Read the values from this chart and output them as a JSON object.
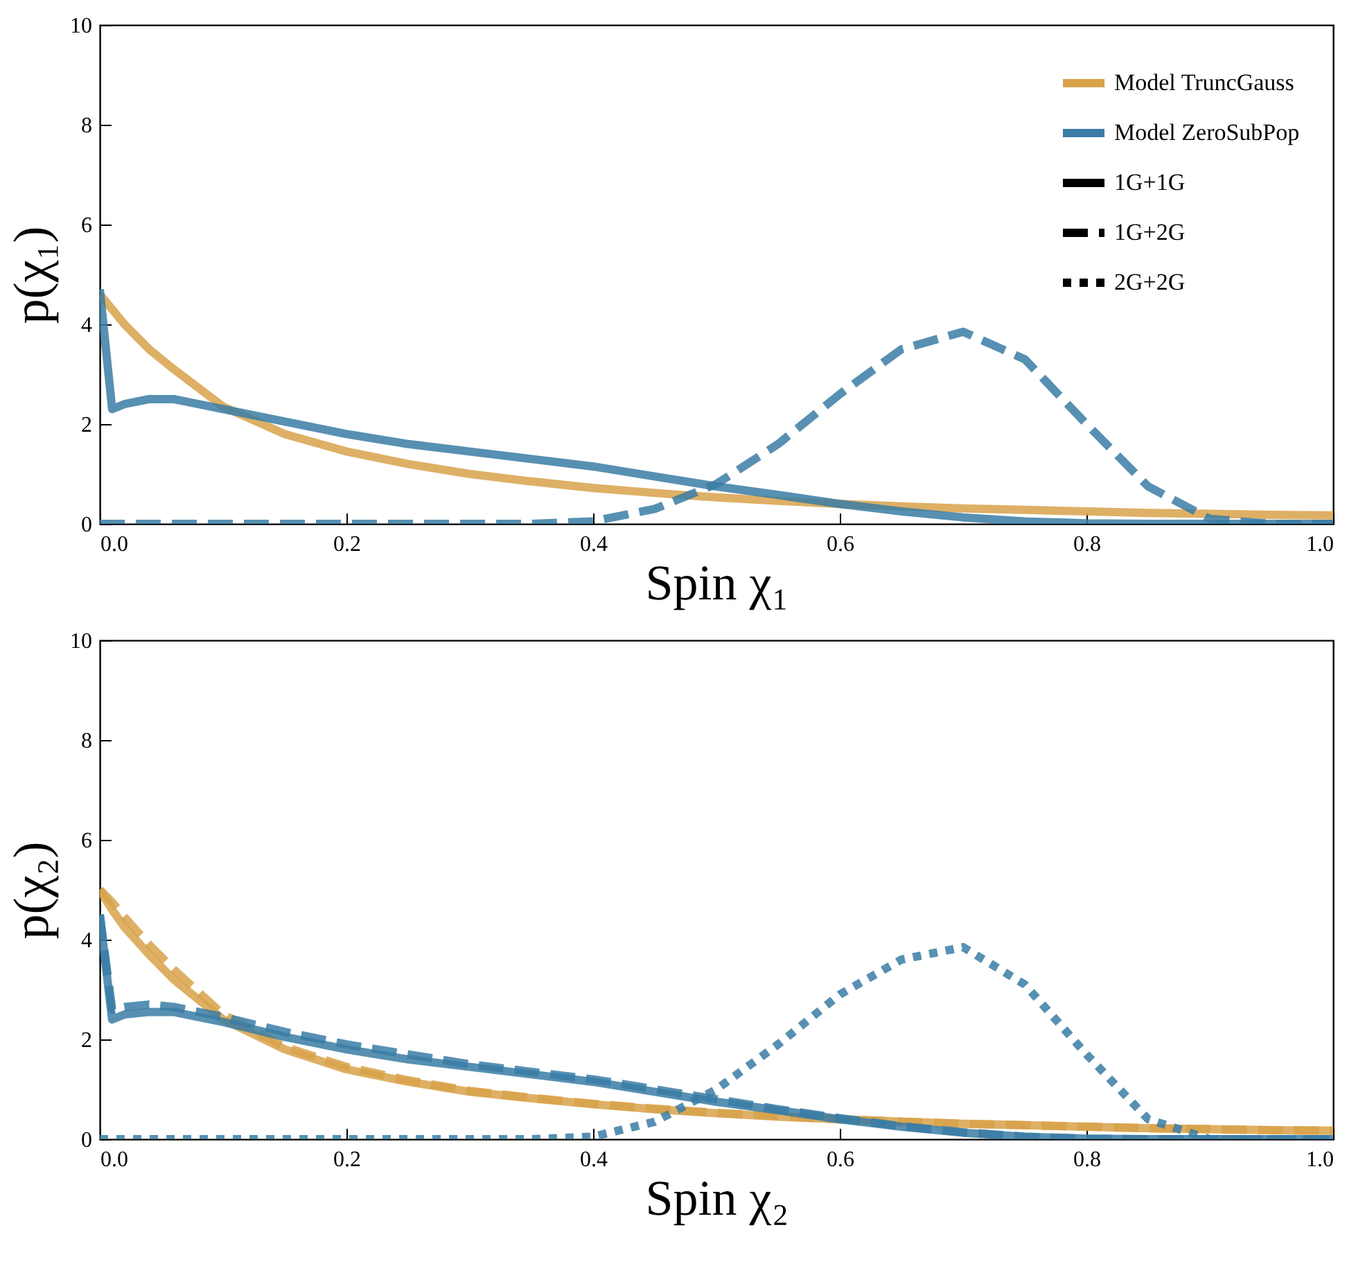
{
  "chart_data": [
    {
      "type": "line",
      "xlabel": "Spin χ₁",
      "ylabel": "p(χ₁)",
      "x": [
        0,
        0.01,
        0.02,
        0.04,
        0.06,
        0.1,
        0.15,
        0.2,
        0.25,
        0.3,
        0.35,
        0.4,
        0.45,
        0.5,
        0.55,
        0.6,
        0.65,
        0.7,
        0.75,
        0.8,
        0.85,
        0.9,
        0.95,
        1.0
      ],
      "xlim": [
        0,
        1
      ],
      "xticks": [
        {
          "value": 0,
          "label": "0.0"
        },
        {
          "value": 0.2,
          "label": "0.2"
        },
        {
          "value": 0.4,
          "label": "0.4"
        },
        {
          "value": 0.6,
          "label": "0.6"
        },
        {
          "value": 0.8,
          "label": "0.8"
        },
        {
          "value": 1,
          "label": "1.0"
        }
      ],
      "ylim": [
        0,
        10
      ],
      "yticks": [
        0,
        2,
        4,
        6,
        8,
        10
      ],
      "legend": "top right",
      "series": [
        {
          "name": "Model TruncGauss",
          "color": "#d8a24a",
          "line_style": "solid",
          "values": [
            4.6,
            4.3,
            4.0,
            3.5,
            3.1,
            2.35,
            1.8,
            1.45,
            1.2,
            1.0,
            0.85,
            0.72,
            0.62,
            0.53,
            0.46,
            0.4,
            0.35,
            0.31,
            0.28,
            0.25,
            0.22,
            0.2,
            0.18,
            0.17
          ]
        },
        {
          "name": "Model ZeroSubPop",
          "color": "#3a7ca5",
          "line_style": "solid",
          "values": [
            4.7,
            2.3,
            2.4,
            2.5,
            2.5,
            2.3,
            2.05,
            1.8,
            1.6,
            1.45,
            1.3,
            1.15,
            0.95,
            0.75,
            0.58,
            0.4,
            0.25,
            0.13,
            0.05,
            0.01,
            0,
            0,
            0,
            0
          ]
        },
        {
          "color": "#3a7ca5",
          "line_style": "dashed",
          "values": [
            0,
            0,
            0,
            0,
            0,
            0,
            0,
            0,
            0,
            0,
            0,
            0.05,
            0.3,
            0.8,
            1.6,
            2.6,
            3.5,
            3.85,
            3.3,
            2.0,
            0.75,
            0.1,
            0,
            0
          ]
        },
        {
          "name": "1G+1G",
          "color": "#000000",
          "line_style": "solid",
          "values": [
            null,
            null,
            null,
            null,
            null,
            null,
            null,
            null,
            null,
            null,
            null,
            null,
            null,
            null,
            null,
            null,
            null,
            null,
            null,
            null,
            null,
            null,
            null,
            null
          ]
        },
        {
          "name": "1G+2G",
          "color": "#000000",
          "line_style": "dashed",
          "values": [
            null,
            null,
            null,
            null,
            null,
            null,
            null,
            null,
            null,
            null,
            null,
            null,
            null,
            null,
            null,
            null,
            null,
            null,
            null,
            null,
            null,
            null,
            null,
            null
          ]
        },
        {
          "name": "2G+2G",
          "color": "#000000",
          "line_style": "dotted",
          "values": [
            null,
            null,
            null,
            null,
            null,
            null,
            null,
            null,
            null,
            null,
            null,
            null,
            null,
            null,
            null,
            null,
            null,
            null,
            null,
            null,
            null,
            null,
            null,
            null
          ]
        }
      ]
    },
    {
      "type": "line",
      "xlabel": "Spin χ₂",
      "ylabel": "p(χ₂)",
      "x": [
        0,
        0.01,
        0.02,
        0.04,
        0.06,
        0.1,
        0.15,
        0.2,
        0.25,
        0.3,
        0.35,
        0.4,
        0.45,
        0.5,
        0.55,
        0.6,
        0.65,
        0.7,
        0.75,
        0.8,
        0.85,
        0.9,
        0.95,
        1.0
      ],
      "xlim": [
        0,
        1
      ],
      "xticks": [
        {
          "value": 0,
          "label": "0.0"
        },
        {
          "value": 0.2,
          "label": "0.2"
        },
        {
          "value": 0.4,
          "label": "0.4"
        },
        {
          "value": 0.6,
          "label": "0.6"
        },
        {
          "value": 0.8,
          "label": "0.8"
        },
        {
          "value": 1,
          "label": "1.0"
        }
      ],
      "ylim": [
        0,
        10
      ],
      "yticks": [
        0,
        2,
        4,
        6,
        8,
        10
      ],
      "series": [
        {
          "color": "#d8a24a",
          "line_style": "solid",
          "values": [
            5.0,
            4.6,
            4.25,
            3.7,
            3.2,
            2.4,
            1.8,
            1.4,
            1.15,
            0.95,
            0.82,
            0.7,
            0.6,
            0.52,
            0.45,
            0.4,
            0.35,
            0.31,
            0.28,
            0.25,
            0.22,
            0.2,
            0.18,
            0.17
          ]
        },
        {
          "color": "#d8a24a",
          "line_style": "dashed",
          "values": [
            5.0,
            4.75,
            4.45,
            3.9,
            3.4,
            2.5,
            1.85,
            1.45,
            1.18,
            0.97,
            0.83,
            0.71,
            0.61,
            0.53,
            0.46,
            0.4,
            0.35,
            0.31,
            0.28,
            0.25,
            0.22,
            0.2,
            0.18,
            0.17
          ]
        },
        {
          "color": "#3a7ca5",
          "line_style": "solid",
          "values": [
            4.5,
            2.4,
            2.5,
            2.55,
            2.55,
            2.35,
            2.05,
            1.8,
            1.6,
            1.45,
            1.3,
            1.15,
            0.95,
            0.75,
            0.58,
            0.4,
            0.25,
            0.13,
            0.05,
            0.01,
            0,
            0,
            0,
            0
          ]
        },
        {
          "color": "#3a7ca5",
          "line_style": "dashed",
          "values": [
            4.5,
            2.6,
            2.65,
            2.7,
            2.65,
            2.45,
            2.15,
            1.9,
            1.7,
            1.5,
            1.35,
            1.2,
            1.0,
            0.8,
            0.6,
            0.42,
            0.26,
            0.14,
            0.05,
            0.01,
            0,
            0,
            0,
            0
          ]
        },
        {
          "color": "#3a7ca5",
          "line_style": "dotted",
          "values": [
            0,
            0,
            0,
            0,
            0,
            0,
            0,
            0,
            0,
            0,
            0,
            0.05,
            0.35,
            1.0,
            1.9,
            2.9,
            3.6,
            3.85,
            3.1,
            1.7,
            0.4,
            0,
            0,
            0
          ]
        }
      ]
    }
  ]
}
